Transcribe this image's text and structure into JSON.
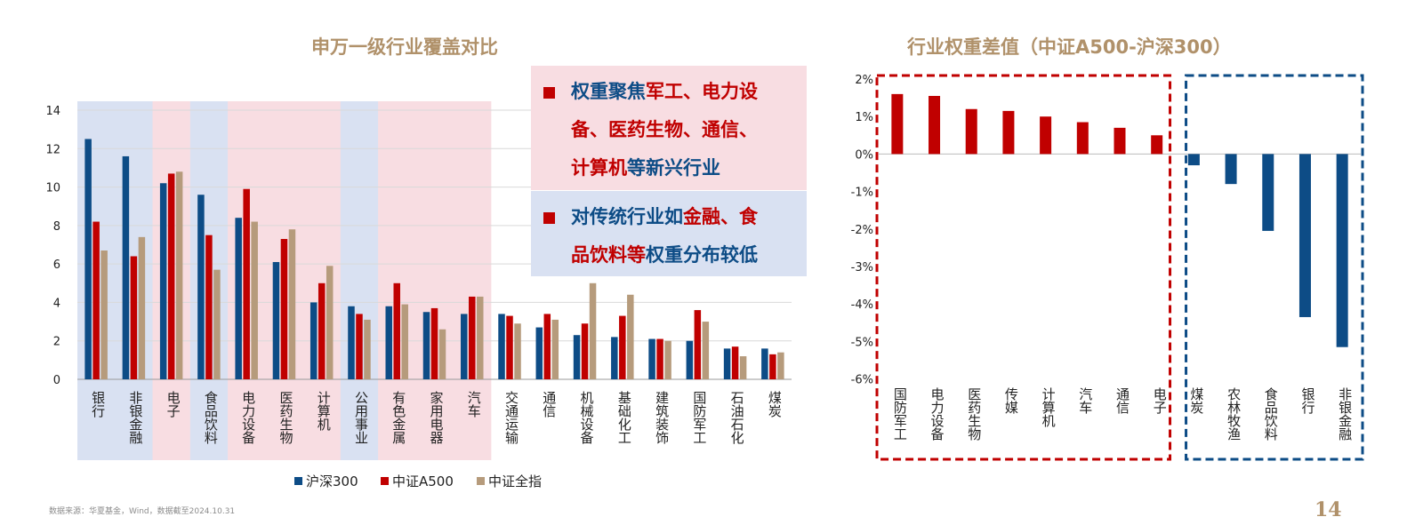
{
  "titles": {
    "left": "申万一级行业覆盖对比",
    "right": "行业权重差值（中证A500-沪深300）"
  },
  "notes": {
    "n1": {
      "p1": "权重聚焦",
      "p2": "军工、电力设",
      "p3": "备、医药生物、通信、",
      "p4": "计算机",
      "p5": "等新兴行业"
    },
    "n2": {
      "p1": "对传统行业如",
      "p2": "金融、食",
      "p3": "品饮料等",
      "p4": "权重分布较低"
    }
  },
  "legend": [
    "沪深300",
    "中证A500",
    "中证全指"
  ],
  "source": "数据来源：华夏基金，Wind，数据截至2024.10.31",
  "page_number": "14",
  "colors": {
    "hs300": "#0d4c86",
    "a500": "#c00000",
    "all": "#b69b7c",
    "pink_bg": "#f8dde2",
    "blue_bg": "#d9e1f2",
    "title": "#b0916a"
  },
  "chart_data": [
    {
      "type": "bar",
      "title": "申万一级行业覆盖对比",
      "categories": [
        "银行",
        "非银金融",
        "电子",
        "食品饮料",
        "电力设备",
        "医药生物",
        "计算机",
        "公用事业",
        "有色金属",
        "家用电器",
        "汽车",
        "交通运输",
        "通信",
        "机械设备",
        "基础化工",
        "建筑装饰",
        "国防军工",
        "石油石化",
        "煤炭"
      ],
      "ylim": [
        0,
        14
      ],
      "yticks": [
        0,
        2,
        4,
        6,
        8,
        10,
        12,
        14
      ],
      "series": [
        {
          "name": "沪深300",
          "values": [
            12.5,
            11.6,
            10.2,
            9.6,
            8.4,
            6.1,
            4.0,
            3.8,
            3.8,
            3.5,
            3.4,
            3.4,
            2.7,
            2.3,
            2.2,
            2.1,
            2.0,
            1.6,
            1.6
          ]
        },
        {
          "name": "中证A500",
          "values": [
            8.2,
            6.4,
            10.7,
            7.5,
            9.9,
            7.3,
            5.0,
            3.4,
            5.0,
            3.7,
            4.3,
            3.3,
            3.4,
            2.9,
            3.3,
            2.1,
            3.6,
            1.7,
            1.3
          ]
        },
        {
          "name": "中证全指",
          "values": [
            6.7,
            7.4,
            10.8,
            5.7,
            8.2,
            7.8,
            5.9,
            3.1,
            3.9,
            2.6,
            4.3,
            2.9,
            3.1,
            5.0,
            4.4,
            2.0,
            3.0,
            1.2,
            1.4
          ]
        }
      ],
      "shading": [
        "blue",
        "blue",
        "pink",
        "blue",
        "pink",
        "pink",
        "pink",
        "blue",
        "pink",
        "pink",
        "pink",
        "none",
        "none",
        "none",
        "none",
        "none",
        "none",
        "none",
        "none"
      ]
    },
    {
      "type": "bar",
      "title": "行业权重差值（中证A500-沪深300）",
      "categories": [
        "国防军工",
        "电力设备",
        "医药生物",
        "传媒",
        "计算机",
        "汽车",
        "通信",
        "电子",
        "煤炭",
        "农林牧渔",
        "食品饮料",
        "银行",
        "非银金融"
      ],
      "values": [
        1.6,
        1.55,
        1.2,
        1.15,
        1.0,
        0.85,
        0.7,
        0.5,
        -0.3,
        -0.8,
        -2.05,
        -4.35,
        -5.15
      ],
      "unit": "%",
      "ylim": [
        -6,
        2
      ],
      "yticks": [
        "2%",
        "1%",
        "0%",
        "-1%",
        "-2%",
        "-3%",
        "-4%",
        "-5%",
        "-6%"
      ]
    }
  ]
}
